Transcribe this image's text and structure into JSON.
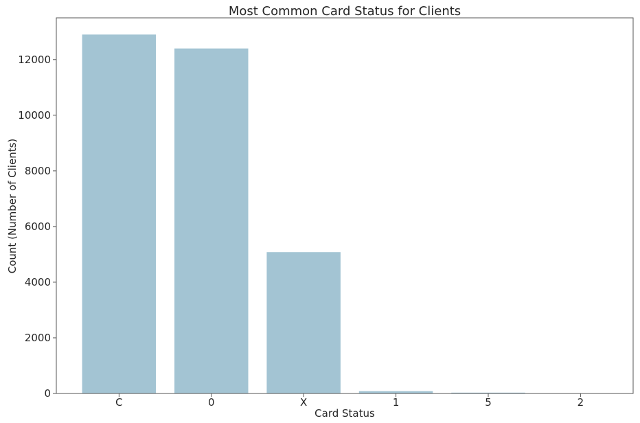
{
  "chart_data": {
    "type": "bar",
    "title": "Most Common Card Status for Clients",
    "xlabel": "Card Status",
    "ylabel": "Count (Number of Clients)",
    "categories": [
      "C",
      "0",
      "X",
      "1",
      "5",
      "2"
    ],
    "values": [
      12900,
      12400,
      5080,
      85,
      30,
      10
    ],
    "ylim": [
      0,
      13500
    ],
    "yticks": [
      0,
      2000,
      4000,
      6000,
      8000,
      10000,
      12000
    ],
    "grid": false,
    "bar_color": "#a3c4d3",
    "axis_color": "#555555"
  }
}
